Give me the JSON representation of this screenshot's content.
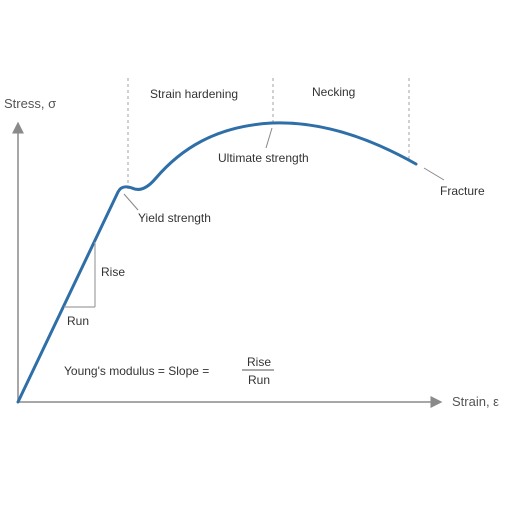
{
  "axes": {
    "y_label": "Stress, σ",
    "x_label": "Strain, ε"
  },
  "regions": {
    "strain_hardening": "Strain hardening",
    "necking": "Necking"
  },
  "points": {
    "yield": "Yield strength",
    "ultimate": "Ultimate strength",
    "fracture": "Fracture"
  },
  "slope": {
    "rise": "Rise",
    "run": "Run",
    "formula": "Young's modulus = Slope =",
    "numerator": "Rise",
    "denominator": "Run"
  },
  "colors": {
    "curve": "#2f6fa8",
    "axis": "#8a8a8a",
    "guide": "#a0a0a0",
    "text": "#333333"
  }
}
